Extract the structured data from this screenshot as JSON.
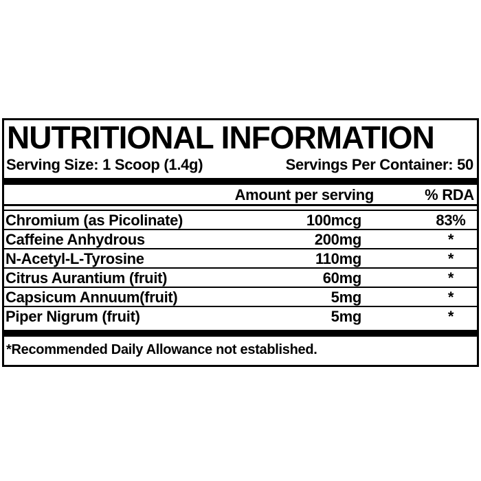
{
  "label": {
    "title": "NUTRITIONAL INFORMATION",
    "serving": {
      "size_label": "Serving Size: 1 Scoop (1.4g)",
      "per_container_label": "Servings Per Container: 50"
    },
    "columns": {
      "amount_header": "Amount per serving",
      "rda_header": "% RDA"
    },
    "rows": [
      {
        "name": "Chromium (as Picolinate)",
        "amount": "100mcg",
        "rda": "83%"
      },
      {
        "name": "Caffeine Anhydrous",
        "amount": "200mg",
        "rda": "*"
      },
      {
        "name": "N-Acetyl-L-Tyrosine",
        "amount": "110mg",
        "rda": "*"
      },
      {
        "name": "Citrus Aurantium (fruit)",
        "amount": "60mg",
        "rda": "*"
      },
      {
        "name": "Capsicum Annuum(fruit)",
        "amount": "5mg",
        "rda": "*"
      },
      {
        "name": "Piper Nigrum (fruit)",
        "amount": "5mg",
        "rda": "*"
      }
    ],
    "footnote": "*Recommended Daily Allowance not established.",
    "colors": {
      "ink": "#000000",
      "background": "#ffffff"
    }
  }
}
